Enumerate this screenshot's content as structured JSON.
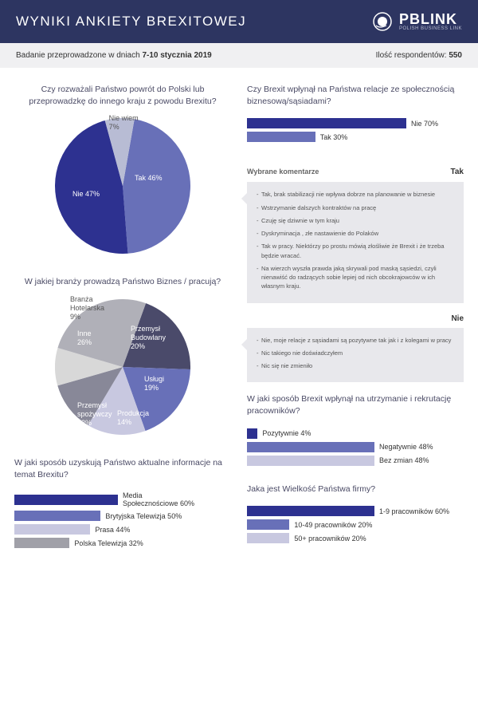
{
  "header": {
    "title": "WYNIKI ANKIETY BREXITOWEJ",
    "logo_main": "PBLINK",
    "logo_sub": "POLISH BUSINESS LINK"
  },
  "subheader": {
    "left_prefix": "Badanie przeprowadzone w dniach ",
    "left_bold": "7-10 stycznia 2019",
    "right_prefix": "Ilość respondentów: ",
    "right_bold": "550"
  },
  "pie1": {
    "title": "Czy rozważali Państwo powrót do Polski lub przeprowadzkę do innego kraju z powodu Brexitu?",
    "slices": [
      {
        "label": "Tak 46%",
        "value": 46,
        "color": "#6870b8"
      },
      {
        "label": "Nie 47%",
        "value": 47,
        "color": "#2d3190"
      },
      {
        "label": "Nie wiem\n7%",
        "value": 7,
        "color": "#b8bcd4"
      }
    ]
  },
  "pie2": {
    "title": "W jakiej branży prowadzą Państwo Biznes / pracują?",
    "slices": [
      {
        "label": "Przemysł\nBudowlany\n20%",
        "value": 20,
        "color": "#4a4a6a"
      },
      {
        "label": "Usługi\n19%",
        "value": 19,
        "color": "#6870b8"
      },
      {
        "label": "Produkcja\n14%",
        "value": 14,
        "color": "#c8c8e0"
      },
      {
        "label": "Przemysł\nspożywczy\n12%",
        "value": 12,
        "color": "#888898"
      },
      {
        "label": "Branża\nHotelarska\n9%",
        "value": 9,
        "color": "#d8d8d8"
      },
      {
        "label": "Inne\n26%",
        "value": 26,
        "color": "#b0b0b8"
      }
    ]
  },
  "bars_left": {
    "title": "W jaki sposób uzyskują Państwo aktualne informacje na temat Brexitu?",
    "items": [
      {
        "label": "Media\nSpołecznościowe 60%",
        "value": 60,
        "color": "#2d3190"
      },
      {
        "label": "Brytyjska Telewizja 50%",
        "value": 50,
        "color": "#6870b8"
      },
      {
        "label": "Prasa 44%",
        "value": 44,
        "color": "#c8c8e0"
      },
      {
        "label": "Polska Telewizja 32%",
        "value": 32,
        "color": "#a0a0a8"
      }
    ]
  },
  "bars_r1": {
    "title": "Czy Brexit wpłynął na Państwa relacje ze społecznością biznesową/sąsiadami?",
    "items": [
      {
        "label": "Nie 70%",
        "value": 70,
        "color": "#2d3190"
      },
      {
        "label": "Tak 30%",
        "value": 30,
        "color": "#6870b8"
      }
    ]
  },
  "comments": {
    "subtitle": "Wybrane komentarze",
    "tak_title": "Tak",
    "tak_items": [
      "Tak, brak stabilizacji nie wpływa dobrze na planowanie w biznesie",
      "Wstrzymanie dalszych kontraktów na pracę",
      "Czuję się dziwnie w tym kraju",
      "Dyskryminacja , złe nastawienie do Polaków",
      "Tak w pracy. Niektórzy po prostu mówią złośliwie że Brexit i że trzeba będzie wracać.",
      "Na wierzch wyszła prawda jaką skrywali pod maską sąsiedzi, czyli nienawiść do radzących sobie lepiej od nich obcokrajowców w ich własnym kraju."
    ],
    "nie_title": "Nie",
    "nie_items": [
      "Nie, moje relacje z sąsiadami są pozytywne tak jak i z kolegami w pracy",
      "Nic takiego nie doświadczyłem",
      "Nic się nie zmieniło"
    ]
  },
  "bars_r2": {
    "title": "W jaki sposób Brexit wpłynął na utrzymanie i rekrutację pracowników?",
    "items": [
      {
        "label": "Pozytywnie 4%",
        "value": 4,
        "color": "#2d3190"
      },
      {
        "label": "Negatywnie 48%",
        "value": 48,
        "color": "#6870b8"
      },
      {
        "label": "Bez zmian 48%",
        "value": 48,
        "color": "#c8c8e0"
      }
    ]
  },
  "bars_r3": {
    "title": "Jaka jest Wielkość Państwa firmy?",
    "items": [
      {
        "label": "1-9 pracowników 60%",
        "value": 60,
        "color": "#2d3190"
      },
      {
        "label": "10-49 pracowników 20%",
        "value": 20,
        "color": "#6870b8"
      },
      {
        "label": "50+ pracowników 20%",
        "value": 20,
        "color": "#c8c8e0"
      }
    ]
  }
}
